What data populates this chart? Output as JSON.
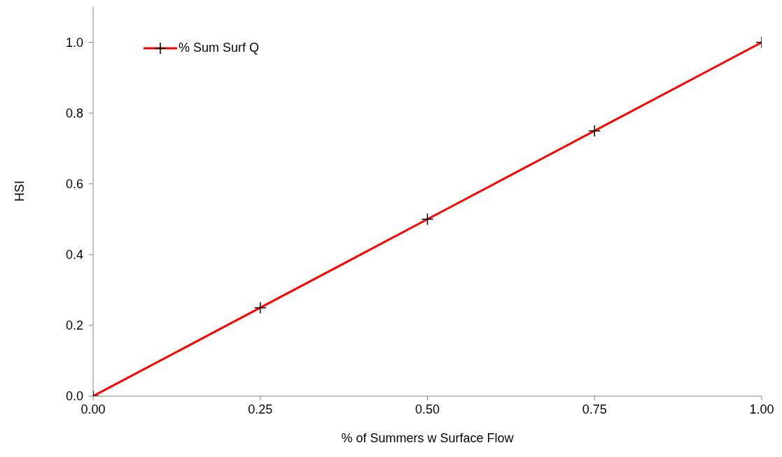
{
  "chart_data": {
    "type": "line",
    "xlabel": "% of Summers w Surface Flow",
    "ylabel": "HSI",
    "x": [
      0,
      0.25,
      0.5,
      0.75,
      1
    ],
    "series": [
      {
        "name": "% Sum Surf Q",
        "color": "#ff0000",
        "values": [
          0,
          0.25,
          0.5,
          0.75,
          1
        ]
      }
    ],
    "xlim": [
      0,
      1
    ],
    "xticks": [
      {
        "value": 0,
        "label": "0.00"
      },
      {
        "value": 0.25,
        "label": "0.25"
      },
      {
        "value": 0.5,
        "label": "0.50"
      },
      {
        "value": 0.75,
        "label": "0.75"
      },
      {
        "value": 1,
        "label": "1.00"
      }
    ],
    "ylim": [
      0,
      1.1
    ],
    "yticks": [
      {
        "value": 0,
        "label": "0.0"
      },
      {
        "value": 0.2,
        "label": "0.2"
      },
      {
        "value": 0.4,
        "label": "0.4"
      },
      {
        "value": 0.6,
        "label": "0.6"
      },
      {
        "value": 0.8,
        "label": "0.8"
      },
      {
        "value": 1,
        "label": "1.0"
      }
    ],
    "grid": false,
    "legend": "top left",
    "marker": "cross",
    "line_style": "solid"
  }
}
